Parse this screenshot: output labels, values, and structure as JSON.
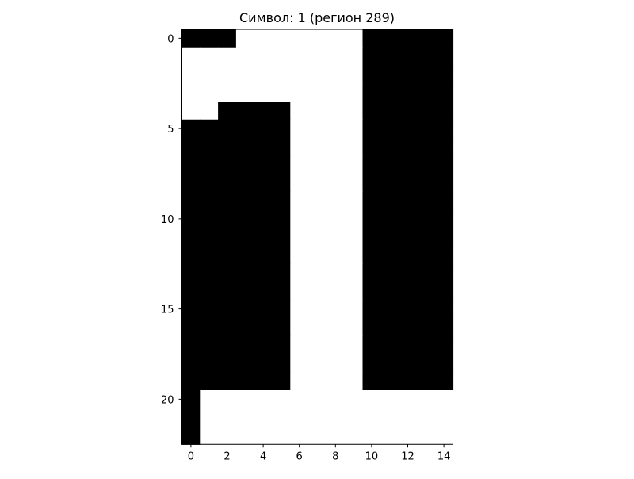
{
  "chart_data": {
    "type": "heatmap",
    "title": "Символ: 1 (регион 289)",
    "colormap": "gray",
    "rows": 23,
    "cols": 15,
    "x_ticks": [
      0,
      2,
      4,
      6,
      8,
      10,
      12,
      14
    ],
    "y_ticks": [
      0,
      5,
      10,
      15,
      20
    ],
    "values": [
      [
        0,
        0,
        0,
        1,
        1,
        1,
        1,
        1,
        1,
        1,
        0,
        0,
        0,
        0,
        0
      ],
      [
        1,
        1,
        1,
        1,
        1,
        1,
        1,
        1,
        1,
        1,
        0,
        0,
        0,
        0,
        0
      ],
      [
        1,
        1,
        1,
        1,
        1,
        1,
        1,
        1,
        1,
        1,
        0,
        0,
        0,
        0,
        0
      ],
      [
        1,
        1,
        1,
        1,
        1,
        1,
        1,
        1,
        1,
        1,
        0,
        0,
        0,
        0,
        0
      ],
      [
        1,
        1,
        0,
        0,
        0,
        0,
        1,
        1,
        1,
        1,
        0,
        0,
        0,
        0,
        0
      ],
      [
        0,
        0,
        0,
        0,
        0,
        0,
        1,
        1,
        1,
        1,
        0,
        0,
        0,
        0,
        0
      ],
      [
        0,
        0,
        0,
        0,
        0,
        0,
        1,
        1,
        1,
        1,
        0,
        0,
        0,
        0,
        0
      ],
      [
        0,
        0,
        0,
        0,
        0,
        0,
        1,
        1,
        1,
        1,
        0,
        0,
        0,
        0,
        0
      ],
      [
        0,
        0,
        0,
        0,
        0,
        0,
        1,
        1,
        1,
        1,
        0,
        0,
        0,
        0,
        0
      ],
      [
        0,
        0,
        0,
        0,
        0,
        0,
        1,
        1,
        1,
        1,
        0,
        0,
        0,
        0,
        0
      ],
      [
        0,
        0,
        0,
        0,
        0,
        0,
        1,
        1,
        1,
        1,
        0,
        0,
        0,
        0,
        0
      ],
      [
        0,
        0,
        0,
        0,
        0,
        0,
        1,
        1,
        1,
        1,
        0,
        0,
        0,
        0,
        0
      ],
      [
        0,
        0,
        0,
        0,
        0,
        0,
        1,
        1,
        1,
        1,
        0,
        0,
        0,
        0,
        0
      ],
      [
        0,
        0,
        0,
        0,
        0,
        0,
        1,
        1,
        1,
        1,
        0,
        0,
        0,
        0,
        0
      ],
      [
        0,
        0,
        0,
        0,
        0,
        0,
        1,
        1,
        1,
        1,
        0,
        0,
        0,
        0,
        0
      ],
      [
        0,
        0,
        0,
        0,
        0,
        0,
        1,
        1,
        1,
        1,
        0,
        0,
        0,
        0,
        0
      ],
      [
        0,
        0,
        0,
        0,
        0,
        0,
        1,
        1,
        1,
        1,
        0,
        0,
        0,
        0,
        0
      ],
      [
        0,
        0,
        0,
        0,
        0,
        0,
        1,
        1,
        1,
        1,
        0,
        0,
        0,
        0,
        0
      ],
      [
        0,
        0,
        0,
        0,
        0,
        0,
        1,
        1,
        1,
        1,
        0,
        0,
        0,
        0,
        0
      ],
      [
        0,
        0,
        0,
        0,
        0,
        0,
        1,
        1,
        1,
        1,
        0,
        0,
        0,
        0,
        0
      ],
      [
        0,
        1,
        1,
        1,
        1,
        1,
        1,
        1,
        1,
        1,
        1,
        1,
        1,
        1,
        1
      ],
      [
        0,
        1,
        1,
        1,
        1,
        1,
        1,
        1,
        1,
        1,
        1,
        1,
        1,
        1,
        1
      ],
      [
        0,
        1,
        1,
        1,
        1,
        1,
        1,
        1,
        1,
        1,
        1,
        1,
        1,
        1,
        1
      ]
    ]
  }
}
